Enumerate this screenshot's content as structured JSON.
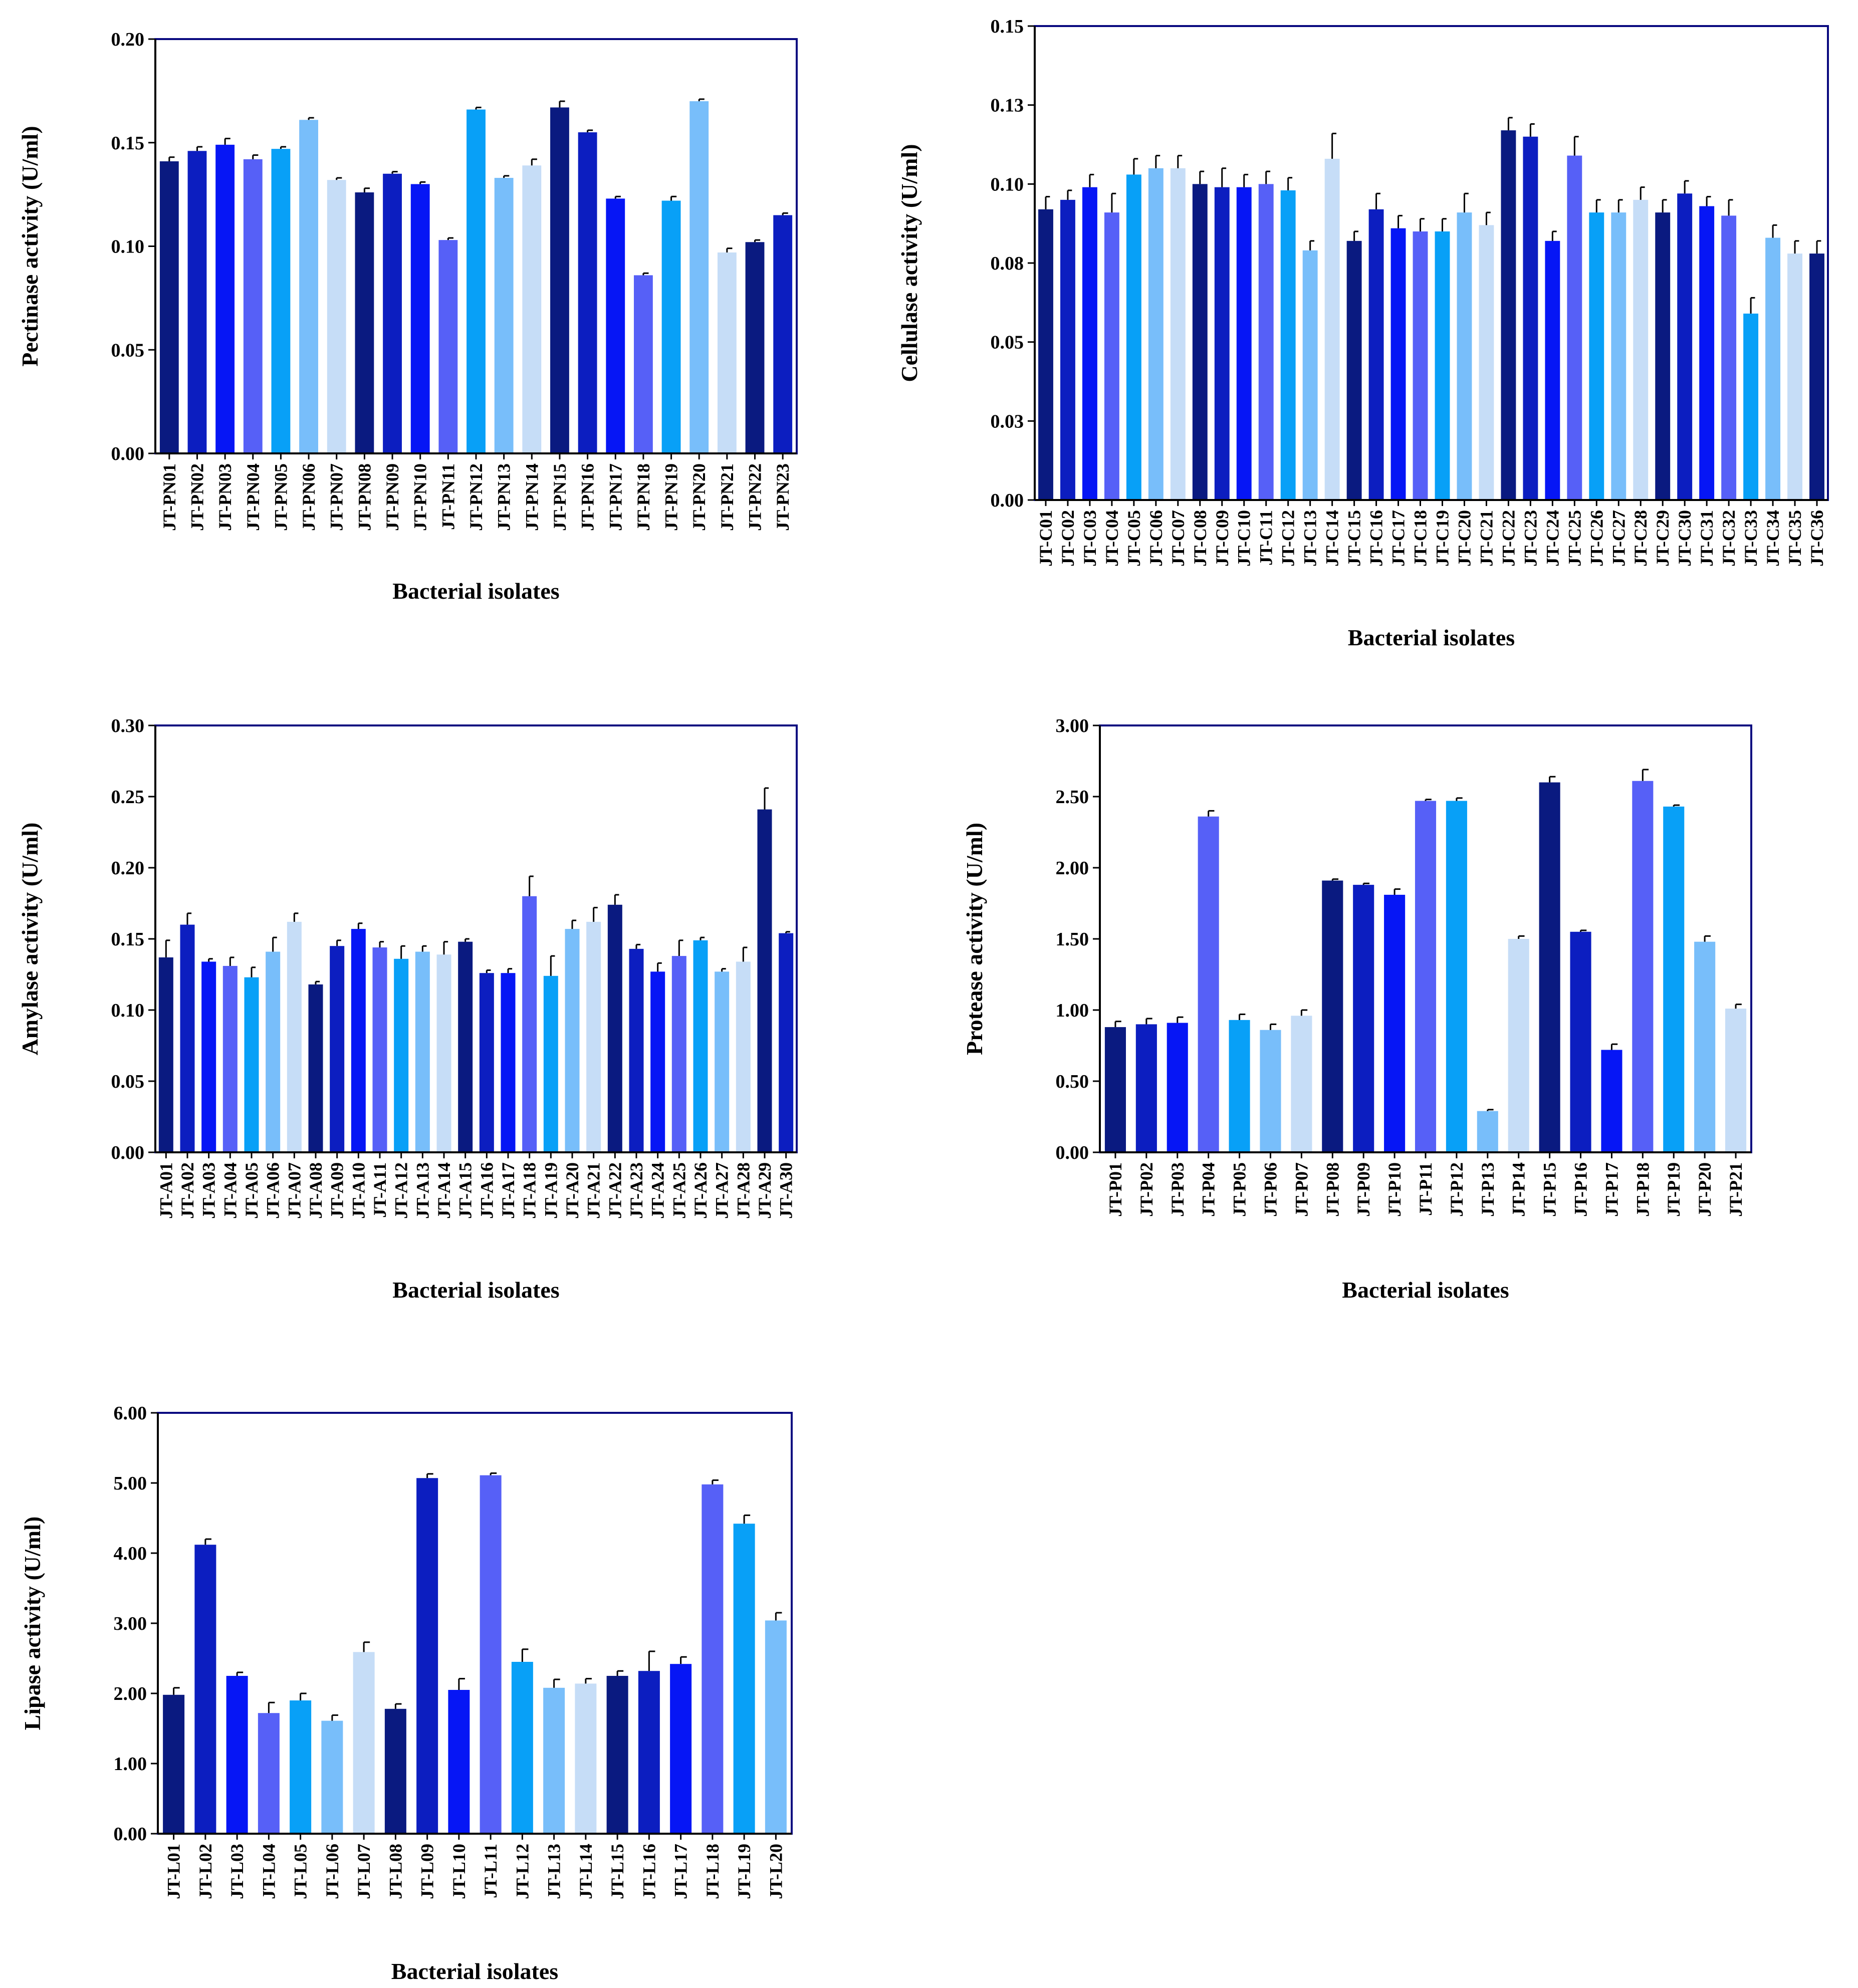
{
  "chart_data": [
    {
      "type": "bar",
      "ylabel": "Pectinase  activity (U/ml)",
      "xlabel": "Bacterial isolates",
      "ylim": [
        0,
        0.2
      ],
      "yticks": [
        "0.00",
        "0.05",
        "0.10",
        "0.15",
        "0.20"
      ],
      "categories": [
        "JT-PN01",
        "JT-PN02",
        "JT-PN03",
        "JT-PN04",
        "JT-PN05",
        "JT-PN06",
        "JT-PN07",
        "JT-PN08",
        "JT-PN09",
        "JT-PN10",
        "JT-PN11",
        "JT-PN12",
        "JT-PN13",
        "JT-PN14",
        "JT-PN15",
        "JT-PN16",
        "JT-PN17",
        "JT-PN18",
        "JT-PN19",
        "JT-PN20",
        "JT-PN21",
        "JT-PN22",
        "JT-PN23"
      ],
      "values": [
        0.141,
        0.146,
        0.149,
        0.142,
        0.147,
        0.161,
        0.132,
        0.126,
        0.135,
        0.13,
        0.103,
        0.166,
        0.133,
        0.139,
        0.167,
        0.155,
        0.123,
        0.086,
        0.122,
        0.17,
        0.097,
        0.102,
        0.115
      ],
      "errors": [
        0.002,
        0.002,
        0.003,
        0.002,
        0.001,
        0.001,
        0.001,
        0.002,
        0.001,
        0.001,
        0.001,
        0.001,
        0.001,
        0.003,
        0.003,
        0.001,
        0.001,
        0.001,
        0.002,
        0.001,
        0.002,
        0.001,
        0.001
      ],
      "color_cycle": [
        "#0a1a80",
        "#0c1ec0",
        "#0616f5",
        "#5660f7",
        "#08a0f7",
        "#78befa",
        "#c6ddf7"
      ]
    },
    {
      "type": "bar",
      "ylabel": "Cellulase activity (U/ml)",
      "xlabel": "Bacterial isolates",
      "ylim": [
        0,
        0.15
      ],
      "yticks": [
        "0.00",
        "0.03",
        "0.05",
        "0.08",
        "0.10",
        "0.13",
        "0.15"
      ],
      "categories": [
        "JT-C01",
        "JT-C02",
        "JT-C03",
        "JT-C04",
        "JT-C05",
        "JT-C06",
        "JT-C07",
        "JT-C08",
        "JT-C09",
        "JT-C10",
        "JT-C11",
        "JT-C12",
        "JT-C13",
        "JT-C14",
        "JT-C15",
        "JT-C16",
        "JT-C17",
        "JT-C18",
        "JT-C19",
        "JT-C20",
        "JT-C21",
        "JT-C22",
        "JT-C23",
        "JT-C24",
        "JT-C25",
        "JT-C26",
        "JT-C27",
        "JT-C28",
        "JT-C29",
        "JT-C30",
        "JT-C31",
        "JT-C32",
        "JT-C33",
        "JT-C34",
        "JT-C35",
        "JT-C36"
      ],
      "values": [
        0.092,
        0.095,
        0.099,
        0.091,
        0.103,
        0.105,
        0.105,
        0.1,
        0.099,
        0.099,
        0.1,
        0.098,
        0.079,
        0.108,
        0.082,
        0.092,
        0.086,
        0.085,
        0.085,
        0.091,
        0.087,
        0.117,
        0.115,
        0.082,
        0.109,
        0.091,
        0.091,
        0.095,
        0.091,
        0.097,
        0.093,
        0.09,
        0.059,
        0.083,
        0.078,
        0.078
      ],
      "errors": [
        0.004,
        0.003,
        0.004,
        0.006,
        0.005,
        0.004,
        0.004,
        0.004,
        0.006,
        0.004,
        0.004,
        0.004,
        0.003,
        0.008,
        0.003,
        0.005,
        0.004,
        0.004,
        0.004,
        0.006,
        0.004,
        0.004,
        0.004,
        0.003,
        0.006,
        0.004,
        0.004,
        0.004,
        0.004,
        0.004,
        0.003,
        0.005,
        0.005,
        0.004,
        0.004,
        0.004
      ],
      "color_cycle": [
        "#0a1a80",
        "#0c1ec0",
        "#0616f5",
        "#5660f7",
        "#08a0f7",
        "#78befa",
        "#c6ddf7"
      ]
    },
    {
      "type": "bar",
      "ylabel": "Amylase activity (U/ml)",
      "xlabel": "Bacterial isolates",
      "ylim": [
        0,
        0.3
      ],
      "yticks": [
        "0.00",
        "0.05",
        "0.10",
        "0.15",
        "0.20",
        "0.25",
        "0.30"
      ],
      "categories": [
        "JT-A01",
        "JT-A02",
        "JT-A03",
        "JT-A04",
        "JT-A05",
        "JT-A06",
        "JT-A07",
        "JT-A08",
        "JT-A09",
        "JT-A10",
        "JT-A11",
        "JT-A12",
        "JT-A13",
        "JT-A14",
        "JT-A15",
        "JT-A16",
        "JT-A17",
        "JT-A18",
        "JT-A19",
        "JT-A20",
        "JT-A21",
        "JT-A22",
        "JT-A23",
        "JT-A24",
        "JT-A25",
        "JT-A26",
        "JT-A27",
        "JT-A28",
        "JT-A29",
        "JT-A30"
      ],
      "values": [
        0.137,
        0.16,
        0.134,
        0.131,
        0.123,
        0.141,
        0.162,
        0.118,
        0.145,
        0.157,
        0.144,
        0.136,
        0.141,
        0.139,
        0.148,
        0.126,
        0.126,
        0.18,
        0.124,
        0.157,
        0.162,
        0.174,
        0.143,
        0.127,
        0.138,
        0.149,
        0.127,
        0.134,
        0.241,
        0.154
      ],
      "errors": [
        0.012,
        0.008,
        0.002,
        0.006,
        0.007,
        0.01,
        0.006,
        0.002,
        0.004,
        0.004,
        0.004,
        0.009,
        0.004,
        0.009,
        0.002,
        0.002,
        0.003,
        0.014,
        0.014,
        0.006,
        0.01,
        0.007,
        0.003,
        0.006,
        0.011,
        0.002,
        0.002,
        0.01,
        0.015,
        0.001
      ],
      "color_cycle": [
        "#0a1a80",
        "#0c1ec0",
        "#0616f5",
        "#5660f7",
        "#08a0f7",
        "#78befa",
        "#c6ddf7"
      ]
    },
    {
      "type": "bar",
      "ylabel": "Protease activity (U/ml)",
      "xlabel": "Bacterial isolates",
      "ylim": [
        0,
        3.0
      ],
      "yticks": [
        "0.00",
        "0.50",
        "1.00",
        "1.50",
        "2.00",
        "2.50",
        "3.00"
      ],
      "categories": [
        "JT-P01",
        "JT-P02",
        "JT-P03",
        "JT-P04",
        "JT-P05",
        "JT-P06",
        "JT-P07",
        "JT-P08",
        "JT-P09",
        "JT-P10",
        "JT-P11",
        "JT-P12",
        "JT-P13",
        "JT-P14",
        "JT-P15",
        "JT-P16",
        "JT-P17",
        "JT-P18",
        "JT-P19",
        "JT-P20",
        "JT-P21"
      ],
      "values": [
        0.88,
        0.9,
        0.91,
        2.36,
        0.93,
        0.86,
        0.96,
        1.91,
        1.88,
        1.81,
        2.47,
        2.47,
        0.29,
        1.5,
        2.6,
        1.55,
        0.72,
        2.61,
        2.43,
        1.48,
        1.01
      ],
      "errors": [
        0.04,
        0.04,
        0.04,
        0.04,
        0.04,
        0.04,
        0.04,
        0.01,
        0.01,
        0.04,
        0.01,
        0.02,
        0.01,
        0.02,
        0.04,
        0.01,
        0.04,
        0.08,
        0.01,
        0.04,
        0.03
      ],
      "color_cycle": [
        "#0a1a80",
        "#0c1ec0",
        "#0616f5",
        "#5660f7",
        "#08a0f7",
        "#78befa",
        "#c6ddf7"
      ]
    },
    {
      "type": "bar",
      "ylabel": "Lipase activity (U/ml)",
      "xlabel": "Bacterial isolates",
      "ylim": [
        0,
        6.0
      ],
      "yticks": [
        "0.00",
        "1.00",
        "2.00",
        "3.00",
        "4.00",
        "5.00",
        "6.00"
      ],
      "categories": [
        "JT-L01",
        "JT-L02",
        "JT-L03",
        "JT-L04",
        "JT-L05",
        "JT-L06",
        "JT-L07",
        "JT-L08",
        "JT-L09",
        "JT-L10",
        "JT-L11",
        "JT-L12",
        "JT-L13",
        "JT-L14",
        "JT-L15",
        "JT-L16",
        "JT-L17",
        "JT-L18",
        "JT-L19",
        "JT-L20"
      ],
      "values": [
        1.98,
        4.12,
        2.25,
        1.72,
        1.9,
        1.61,
        2.59,
        1.78,
        5.07,
        2.05,
        5.11,
        2.45,
        2.08,
        2.14,
        2.25,
        2.32,
        2.42,
        4.98,
        4.42,
        3.04
      ],
      "errors": [
        0.1,
        0.08,
        0.05,
        0.15,
        0.1,
        0.08,
        0.14,
        0.07,
        0.06,
        0.16,
        0.03,
        0.18,
        0.12,
        0.07,
        0.07,
        0.28,
        0.1,
        0.06,
        0.12,
        0.11
      ],
      "color_cycle": [
        "#0a1a80",
        "#0c1ec0",
        "#0616f5",
        "#5660f7",
        "#08a0f7",
        "#78befa",
        "#c6ddf7"
      ]
    }
  ]
}
